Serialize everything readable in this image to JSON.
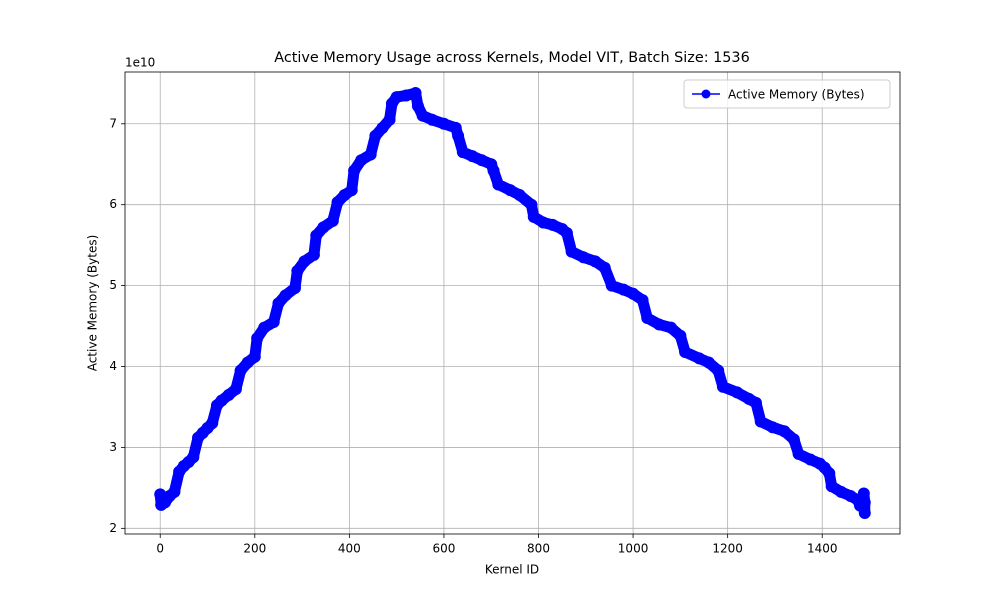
{
  "chart_data": {
    "type": "line",
    "title": "Active Memory Usage across Kernels, Model VIT, Batch Size: 1536",
    "x_label": "Kernel ID",
    "y_label": "Active Memory (Bytes)",
    "y_offset_label": "1e10",
    "xlim": [
      -74.5,
      1564.5
    ],
    "ylim": [
      1.93,
      7.64
    ],
    "xticks": [
      0,
      200,
      400,
      600,
      800,
      1000,
      1200,
      1400
    ],
    "yticks": [
      2,
      3,
      4,
      5,
      6,
      7
    ],
    "grid": true,
    "legend": "upper right",
    "series": [
      {
        "name": "Active Memory (Bytes)",
        "color": "#0000ff",
        "x": [
          0,
          2,
          10,
          20,
          30,
          40,
          50,
          60,
          70,
          80,
          90,
          100,
          110,
          120,
          130,
          145,
          160,
          170,
          185,
          200,
          205,
          220,
          240,
          250,
          265,
          285,
          290,
          305,
          325,
          330,
          345,
          365,
          375,
          390,
          405,
          410,
          425,
          445,
          455,
          470,
          485,
          490,
          500,
          520,
          540,
          545,
          555,
          575,
          600,
          625,
          630,
          640,
          660,
          680,
          700,
          705,
          715,
          740,
          760,
          785,
          790,
          810,
          830,
          850,
          860,
          870,
          895,
          920,
          940,
          955,
          980,
          1000,
          1020,
          1030,
          1055,
          1080,
          1100,
          1110,
          1140,
          1160,
          1180,
          1190,
          1220,
          1245,
          1260,
          1270,
          1295,
          1320,
          1340,
          1350,
          1375,
          1395,
          1405,
          1415,
          1420,
          1440,
          1460,
          1475,
          1480,
          1488,
          1490,
          1490
        ],
        "values": [
          2.42,
          2.29,
          2.32,
          2.4,
          2.45,
          2.7,
          2.77,
          2.82,
          2.88,
          3.12,
          3.18,
          3.24,
          3.3,
          3.52,
          3.58,
          3.65,
          3.72,
          3.95,
          4.05,
          4.12,
          4.35,
          4.48,
          4.55,
          4.78,
          4.88,
          4.97,
          5.18,
          5.3,
          5.38,
          5.62,
          5.72,
          5.8,
          6.03,
          6.12,
          6.18,
          6.42,
          6.55,
          6.62,
          6.85,
          6.95,
          7.05,
          7.25,
          7.33,
          7.35,
          7.38,
          7.22,
          7.1,
          7.05,
          7.0,
          6.95,
          6.85,
          6.65,
          6.6,
          6.55,
          6.5,
          6.42,
          6.25,
          6.18,
          6.12,
          6.0,
          5.85,
          5.78,
          5.75,
          5.7,
          5.65,
          5.42,
          5.35,
          5.3,
          5.22,
          5.0,
          4.95,
          4.9,
          4.82,
          4.6,
          4.52,
          4.48,
          4.38,
          4.18,
          4.1,
          4.05,
          3.95,
          3.75,
          3.68,
          3.6,
          3.55,
          3.32,
          3.25,
          3.2,
          3.1,
          2.92,
          2.85,
          2.8,
          2.75,
          2.68,
          2.52,
          2.45,
          2.4,
          2.35,
          2.28,
          2.43,
          2.32,
          2.19
        ]
      }
    ]
  }
}
